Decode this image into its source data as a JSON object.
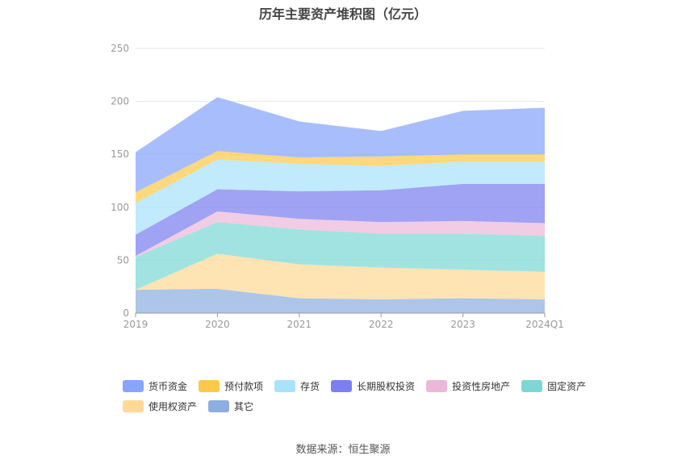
{
  "chart_data": {
    "type": "area",
    "stacked": true,
    "title": "历年主要资产堆积图（亿元）",
    "categories": [
      "2019",
      "2020",
      "2021",
      "2022",
      "2023",
      "2024Q1"
    ],
    "ylim": [
      0,
      250
    ],
    "yticks": [
      0,
      50,
      100,
      150,
      200,
      250
    ],
    "grid": true,
    "legend_position": "bottom",
    "series": [
      {
        "name": "其它",
        "color": "#8eaee0",
        "values": [
          22,
          23,
          14,
          13,
          14,
          13
        ]
      },
      {
        "name": "使用权资产",
        "color": "#ffd995",
        "values": [
          0,
          33,
          32,
          30,
          27,
          26
        ]
      },
      {
        "name": "固定资产",
        "color": "#7dd8d4",
        "values": [
          31,
          30,
          33,
          32,
          34,
          34
        ]
      },
      {
        "name": "投资性房地产",
        "color": "#ebb8d9",
        "values": [
          1,
          10,
          10,
          11,
          12,
          12
        ]
      },
      {
        "name": "长期股权投资",
        "color": "#7b7ff0",
        "values": [
          20,
          21,
          26,
          30,
          35,
          37
        ]
      },
      {
        "name": "存货",
        "color": "#a9e2fb",
        "values": [
          30,
          28,
          26,
          23,
          21,
          21
        ]
      },
      {
        "name": "预付款项",
        "color": "#fcc94b",
        "values": [
          10,
          8,
          6,
          9,
          7,
          7
        ]
      },
      {
        "name": "货币资金",
        "color": "#86a5fb",
        "values": [
          38,
          51,
          34,
          24,
          41,
          44
        ]
      }
    ],
    "legend_order": [
      "货币资金",
      "预付款项",
      "存货",
      "长期股权投资",
      "投资性房地产",
      "固定资产",
      "使用权资产",
      "其它"
    ]
  },
  "source_label": "数据来源：恒生聚源"
}
